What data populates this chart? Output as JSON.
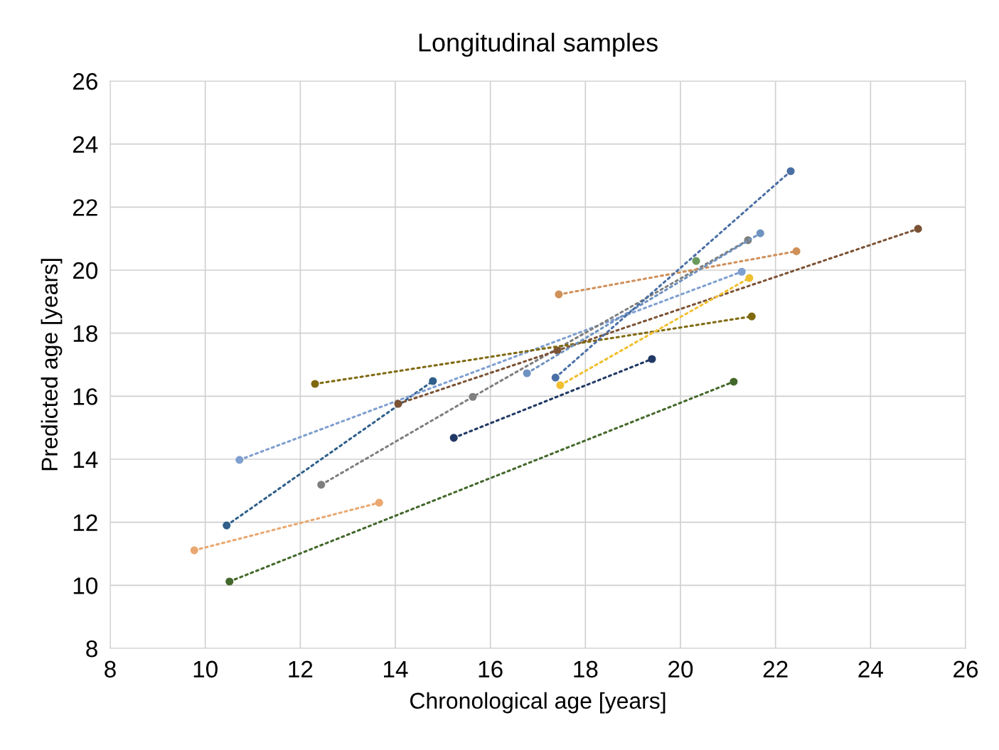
{
  "chart_data": {
    "type": "line",
    "title": "Longitudinal samples",
    "xlabel": "Chronological age [years]",
    "ylabel": "Predicted age [years]",
    "xlim": [
      8,
      26
    ],
    "xticks": [
      8,
      10,
      12,
      14,
      16,
      18,
      20,
      22,
      24,
      26
    ],
    "ylim": [
      8,
      26
    ],
    "yticks": [
      8,
      10,
      12,
      14,
      16,
      18,
      20,
      22,
      24,
      26
    ],
    "grid": true,
    "marker": "circle",
    "line_style": "dotted",
    "series": [
      {
        "color": "#eaa870",
        "x": [
          9.77,
          13.66
        ],
        "values": [
          11.11,
          12.62
        ]
      },
      {
        "color": "#43682b",
        "x": [
          10.51,
          21.12
        ],
        "values": [
          10.12,
          16.46
        ]
      },
      {
        "color": "#2f5f8a",
        "x": [
          10.45,
          14.79
        ],
        "values": [
          11.9,
          16.48
        ]
      },
      {
        "color": "#7f9fcf",
        "x": [
          10.72,
          21.29
        ],
        "values": [
          13.98,
          19.95
        ]
      },
      {
        "color": "#7f7f7f",
        "x": [
          12.44,
          15.63,
          21.42
        ],
        "values": [
          13.19,
          15.98,
          20.95
        ]
      },
      {
        "color": "#7b5234",
        "x": [
          14.06,
          17.41,
          25.0
        ],
        "values": [
          15.76,
          17.45,
          21.31
        ]
      },
      {
        "color": "#806a10",
        "x": [
          12.31,
          21.5
        ],
        "values": [
          16.39,
          18.53
        ]
      },
      {
        "color": "#f0c030",
        "x": [
          17.47,
          21.45
        ],
        "values": [
          16.35,
          19.75
        ]
      },
      {
        "color": "#203864",
        "x": [
          15.23,
          19.4
        ],
        "values": [
          14.68,
          17.18
        ]
      },
      {
        "color": "#d0905a",
        "x": [
          17.44,
          22.44
        ],
        "values": [
          19.23,
          20.6
        ]
      },
      {
        "color": "#6f93c0",
        "x": [
          16.77,
          21.68
        ],
        "values": [
          16.73,
          21.17
        ]
      },
      {
        "color": "#4a6fa5",
        "x": [
          17.37,
          22.32
        ],
        "values": [
          16.59,
          23.14
        ]
      },
      {
        "color": "#6a9a5b",
        "x": [
          20.33
        ],
        "values": [
          20.29
        ]
      }
    ]
  }
}
